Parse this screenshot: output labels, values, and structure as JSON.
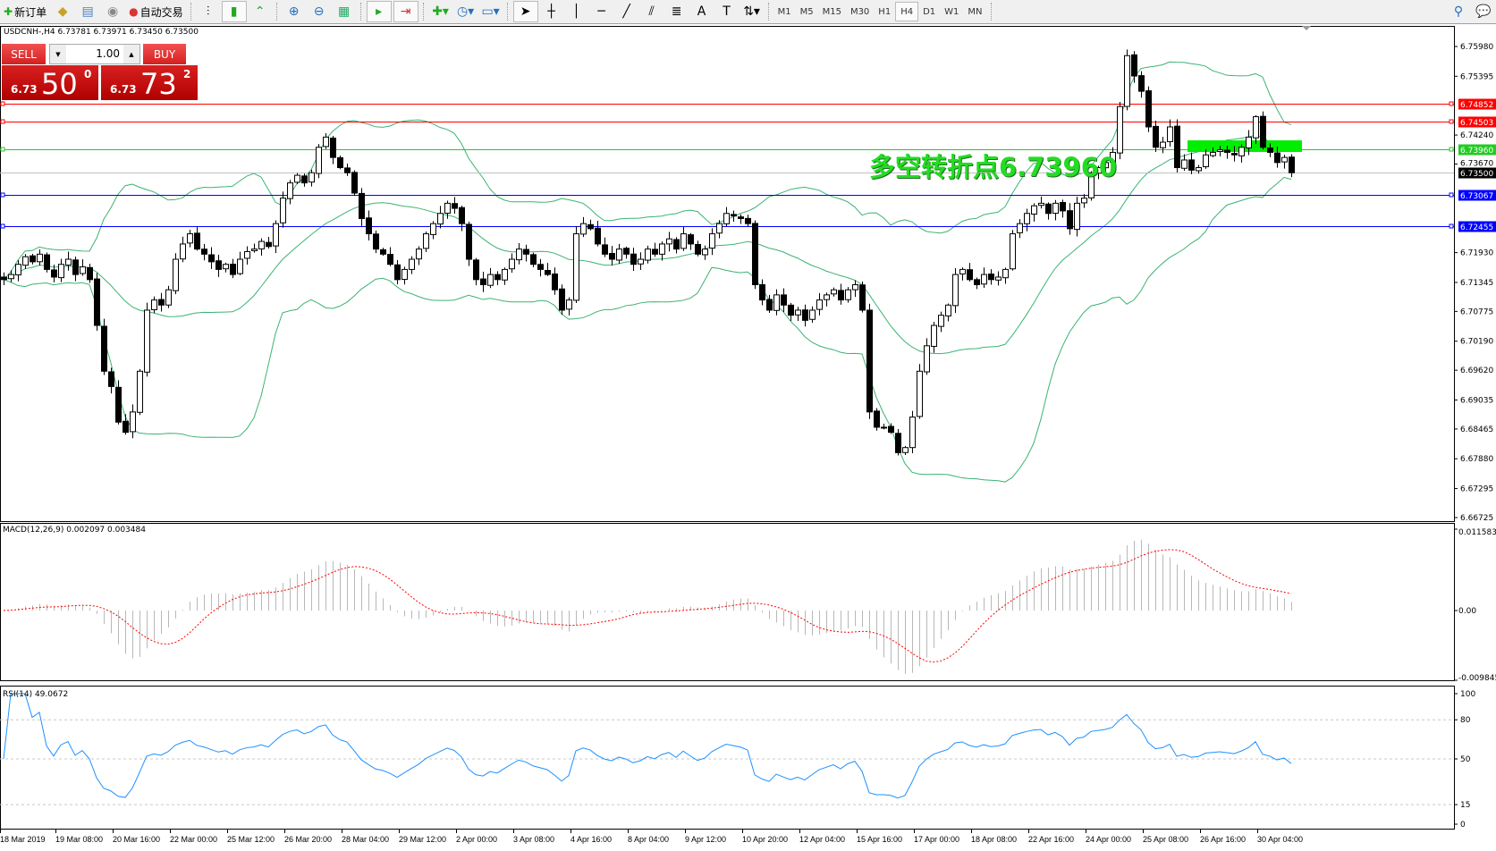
{
  "toolbar": {
    "new_order": "新订单",
    "auto_trading": "自动交易",
    "timeframes": [
      "M1",
      "M5",
      "M15",
      "M30",
      "H1",
      "H4",
      "D1",
      "W1",
      "MN"
    ],
    "active_timeframe": "H4"
  },
  "chart_info": "USDCNH-,H4  6.73781 6.73971 6.73450 6.73500",
  "trade_panel": {
    "sell_label": "SELL",
    "buy_label": "BUY",
    "lot": "1.00",
    "sell_price": {
      "prefix": "6.73",
      "big": "50",
      "sup": "0"
    },
    "buy_price": {
      "prefix": "6.73",
      "big": "73",
      "sup": "2"
    }
  },
  "annotation": "多空转折点6.73960",
  "colors": {
    "resistance": "#ff0000",
    "pivot": "#00dd00",
    "support": "#0000ff",
    "bands": "#3cb371",
    "rsi": "#1e90ff",
    "macd_signal": "#ff0000"
  },
  "chart_data": [
    {
      "type": "candlestick",
      "symbol": "USDCNH-",
      "timeframe": "H4",
      "ylim": [
        6.66725,
        6.7598
      ],
      "price_ticks": [
        "6.75980",
        "6.75395",
        "6.74240",
        "6.73670",
        "6.71930",
        "6.71345",
        "6.70775",
        "6.70190",
        "6.69620",
        "6.69035",
        "6.68465",
        "6.67880",
        "6.67295",
        "6.66725"
      ],
      "current_price": "6.73500",
      "hlines": [
        {
          "value": "6.74852",
          "color": "#ff0000"
        },
        {
          "value": "6.74503",
          "color": "#ff0000"
        },
        {
          "value": "6.73960",
          "color": "#22cc22"
        },
        {
          "value": "6.73067",
          "color": "#0000ff"
        },
        {
          "value": "6.72455",
          "color": "#0000ff"
        }
      ],
      "indicator": "Bollinger Bands",
      "time_labels": [
        "18 Mar 2019",
        "19 Mar 08:00",
        "20 Mar 16:00",
        "22 Mar 00:00",
        "25 Mar 12:00",
        "26 Mar 20:00",
        "28 Mar 04:00",
        "29 Mar 12:00",
        "2 Apr 00:00",
        "3 Apr 08:00",
        "4 Apr 16:00",
        "8 Apr 04:00",
        "9 Apr 12:00",
        "10 Apr 20:00",
        "12 Apr 04:00",
        "15 Apr 16:00",
        "17 Apr 00:00",
        "18 Apr 08:00",
        "22 Apr 16:00",
        "24 Apr 00:00",
        "25 Apr 08:00",
        "26 Apr 16:00",
        "30 Apr 04:00"
      ],
      "close": [
        6.714,
        6.715,
        6.717,
        6.7185,
        6.7175,
        6.719,
        6.716,
        6.7145,
        6.717,
        6.718,
        6.715,
        6.7165,
        6.714,
        6.705,
        6.696,
        6.693,
        6.686,
        6.684,
        6.688,
        6.696,
        6.708,
        6.71,
        6.709,
        6.712,
        6.718,
        6.721,
        6.723,
        6.72,
        6.719,
        6.7175,
        6.716,
        6.717,
        6.715,
        6.718,
        6.7195,
        6.72,
        6.7215,
        6.7205,
        6.725,
        6.73,
        6.733,
        6.7345,
        6.733,
        6.735,
        6.74,
        6.742,
        6.738,
        6.736,
        6.735,
        6.731,
        6.726,
        6.723,
        6.72,
        6.719,
        6.717,
        6.714,
        6.716,
        6.718,
        6.72,
        6.723,
        6.725,
        6.727,
        6.729,
        6.728,
        6.725,
        6.718,
        6.714,
        6.713,
        6.715,
        6.714,
        6.716,
        6.718,
        6.72,
        6.719,
        6.717,
        6.716,
        6.715,
        6.712,
        6.708,
        6.71,
        6.723,
        6.725,
        6.724,
        6.721,
        6.719,
        6.718,
        6.72,
        6.719,
        6.717,
        6.718,
        6.72,
        6.719,
        6.721,
        6.722,
        6.72,
        6.723,
        6.721,
        6.719,
        6.72,
        6.723,
        6.725,
        6.727,
        6.7265,
        6.726,
        6.725,
        6.713,
        6.71,
        6.708,
        6.711,
        6.709,
        6.707,
        6.708,
        6.706,
        6.708,
        6.71,
        6.711,
        6.712,
        6.71,
        6.712,
        6.713,
        6.708,
        6.688,
        6.685,
        6.685,
        6.684,
        6.68,
        6.681,
        6.687,
        6.696,
        6.701,
        6.705,
        6.707,
        6.709,
        6.715,
        6.716,
        6.714,
        6.713,
        6.715,
        6.714,
        6.7145,
        6.716,
        6.723,
        6.725,
        6.727,
        6.7285,
        6.729,
        6.727,
        6.729,
        6.7275,
        6.724,
        6.729,
        6.73,
        6.735,
        6.736,
        6.737,
        6.739,
        6.748,
        6.758,
        6.754,
        6.751,
        6.744,
        6.74,
        6.741,
        6.744,
        6.736,
        6.7375,
        6.7355,
        6.736,
        6.7385,
        6.739,
        6.7395,
        6.739,
        6.7385,
        6.74,
        6.742,
        6.746,
        6.74,
        6.739,
        6.737,
        6.738,
        6.735
      ]
    },
    {
      "type": "bar",
      "title": "MACD(12,26,9) 0.002097 0.003484",
      "ylim": [
        -0.009845,
        0.011583
      ],
      "ticks": [
        "0.011583",
        "0.00",
        "-0.009845"
      ]
    },
    {
      "type": "line",
      "title": "RSI(14) 49.0672",
      "ylim": [
        0,
        100
      ],
      "ticks": [
        "100",
        "80",
        "50",
        "15",
        "0"
      ],
      "levels": [
        80,
        50,
        15
      ]
    }
  ]
}
